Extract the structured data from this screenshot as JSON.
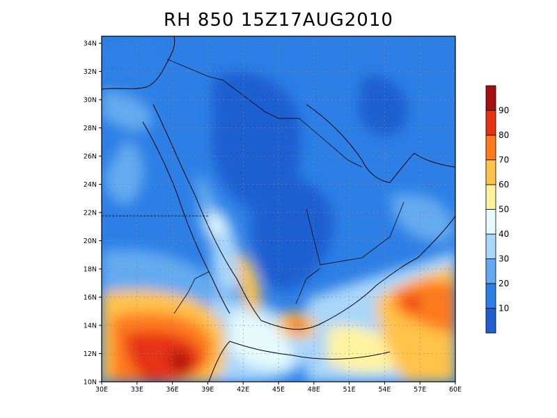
{
  "title": "RH 850 15Z17AUG2010",
  "map": {
    "lat_labels": [
      "10N",
      "12N",
      "14N",
      "16N",
      "18N",
      "20N",
      "22N",
      "24N",
      "26N",
      "28N",
      "30N",
      "32N",
      "34N"
    ],
    "lon_labels": [
      "30E",
      "33E",
      "36E",
      "39E",
      "42E",
      "45E",
      "48E",
      "51E",
      "54E",
      "57E",
      "60E"
    ],
    "lat_values": [
      10,
      12,
      14,
      16,
      18,
      20,
      22,
      24,
      26,
      28,
      30,
      32,
      34
    ],
    "lon_values": [
      30,
      33,
      36,
      39,
      42,
      45,
      48,
      51,
      54,
      57,
      60
    ],
    "extent": {
      "lon": [
        30,
        60
      ],
      "lat": [
        10,
        34.5
      ]
    },
    "grid": true
  },
  "colorbar": {
    "labels": [
      "10",
      "20",
      "30",
      "40",
      "50",
      "60",
      "70",
      "80",
      "90"
    ],
    "colors": [
      "#1f5fd0",
      "#2d7fe6",
      "#64aaf0",
      "#a9d6fa",
      "#e6fafc",
      "#fff3a0",
      "#ffc34a",
      "#ff7a1a",
      "#e63214",
      "#a50f0f"
    ]
  }
}
